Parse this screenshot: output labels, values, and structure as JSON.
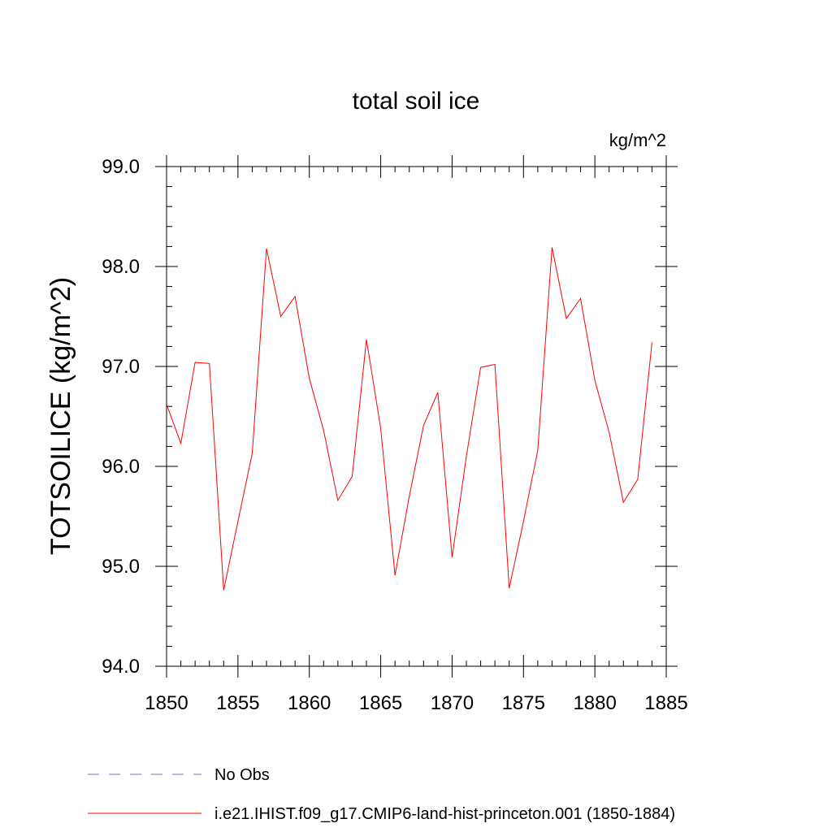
{
  "chart_data": {
    "type": "line",
    "title": "total soil ice",
    "units": "kg/m^2",
    "ylabel": "TOTSOILICE  (kg/m^2)",
    "xlabel": "",
    "xlim": [
      1850,
      1885
    ],
    "ylim": [
      94.0,
      99.0
    ],
    "x_ticks": [
      1850,
      1855,
      1860,
      1865,
      1870,
      1875,
      1880,
      1885
    ],
    "x_tick_labels": [
      "1850",
      "1855",
      "1860",
      "1865",
      "1870",
      "1875",
      "1880",
      "1885"
    ],
    "y_ticks": [
      94.0,
      95.0,
      96.0,
      97.0,
      98.0,
      99.0
    ],
    "y_tick_labels": [
      "94.0",
      "95.0",
      "96.0",
      "97.0",
      "98.0",
      "99.0"
    ],
    "grid": false,
    "legend_position": "bottom",
    "series": [
      {
        "name": "i.e21.IHIST.f09_g17.CMIP6-land-hist-princeton.001 (1850-1884)",
        "color": "#ff0000",
        "style": "solid",
        "x": [
          1850,
          1851,
          1852,
          1853,
          1854,
          1855,
          1856,
          1857,
          1858,
          1859,
          1860,
          1861,
          1862,
          1863,
          1864,
          1865,
          1866,
          1867,
          1868,
          1869,
          1870,
          1871,
          1872,
          1873,
          1874,
          1875,
          1876,
          1877,
          1878,
          1879,
          1880,
          1881,
          1882,
          1883,
          1884
        ],
        "values": [
          96.62,
          96.23,
          97.04,
          97.03,
          94.76,
          95.45,
          96.13,
          98.18,
          97.5,
          97.7,
          96.88,
          96.36,
          95.66,
          95.9,
          97.27,
          96.38,
          94.91,
          95.7,
          96.41,
          96.74,
          95.09,
          96.1,
          96.99,
          97.02,
          94.78,
          95.45,
          96.16,
          98.19,
          97.48,
          97.68,
          96.86,
          96.34,
          95.64,
          95.87,
          97.24
        ]
      }
    ],
    "legend": [
      {
        "label": "No Obs",
        "color": "#7a6fb8",
        "style": "dashed"
      },
      {
        "label": "i.e21.IHIST.f09_g17.CMIP6-land-hist-princeton.001 (1850-1884)",
        "color": "#ff0000",
        "style": "solid"
      }
    ]
  }
}
